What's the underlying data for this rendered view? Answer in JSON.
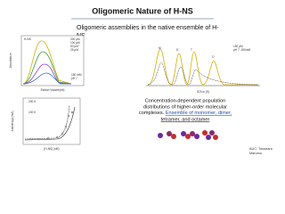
{
  "slide": {
    "title": "Oligomeric Nature of H-NS",
    "subtitle": [
      "Oligomeric assemblies in the native ensemble of H-",
      "NS"
    ],
    "sec_plot": {
      "y_label": "Absorbance",
      "x_label": "Elution Volume(ml)",
      "tag": "H-NS",
      "legend": [
        "200 μM",
        "100 μM",
        "50 μM",
        "25 μM"
      ],
      "note": [
        "150 mM",
        "pH 7"
      ]
    },
    "auc_plot": {
      "x_label": "S20,w (S)",
      "peaks": [
        "M",
        "D",
        "T",
        "O"
      ],
      "note": [
        "150 μM",
        "pH 7, 150mM"
      ]
    },
    "fa_plot": {
      "y_label": "Anisotropy (mA)",
      "x_label": "[H-NS] (nM)",
      "annotations": [
        "200 K",
        "100 K"
      ]
    },
    "caption": {
      "line1": "Concentration-dependent population",
      "line2": "distributions of higher-order molecular",
      "line3_plain": "complexes. ",
      "line3_link": "Ensemble of monomer, dimer,",
      "line4": "tetramer, and octamer"
    },
    "credit": [
      "AUC: Tokuhara",
      "Marumo"
    ]
  }
}
